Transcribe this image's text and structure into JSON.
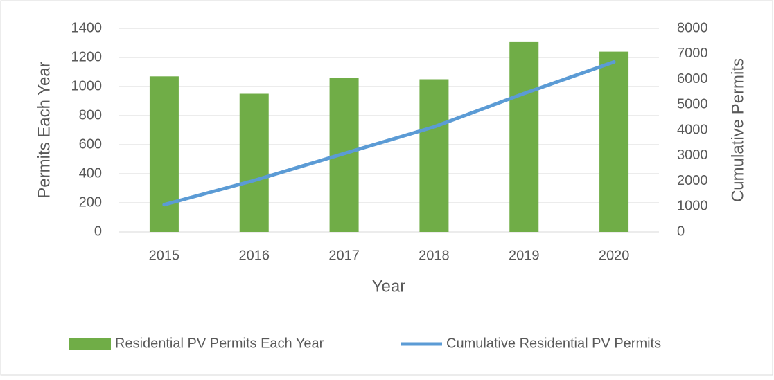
{
  "chart_data": {
    "type": "bar",
    "x_label": "Year",
    "y_label": "Permits Each Year",
    "y2_label": "Cumulative Permits",
    "categories": [
      "2015",
      "2016",
      "2017",
      "2018",
      "2019",
      "2020"
    ],
    "series": [
      {
        "name": "Residential PV Permits Each Year",
        "type": "bar",
        "color": "#70ad47",
        "values": [
          1070,
          950,
          1060,
          1050,
          1310,
          1240
        ]
      },
      {
        "name": "Cumulative Residential PV Permits",
        "type": "line",
        "axis": "y2",
        "color": "#5b9bd5",
        "values": [
          1070,
          2020,
          3080,
          4130,
          5440,
          6680
        ]
      }
    ],
    "ylim": [
      0,
      1400
    ],
    "yticks": [
      0,
      200,
      400,
      600,
      800,
      1000,
      1200,
      1400
    ],
    "y2lim": [
      0,
      8000
    ],
    "y2ticks": [
      0,
      1000,
      2000,
      3000,
      4000,
      5000,
      6000,
      7000,
      8000
    ],
    "legend": "bottom"
  }
}
